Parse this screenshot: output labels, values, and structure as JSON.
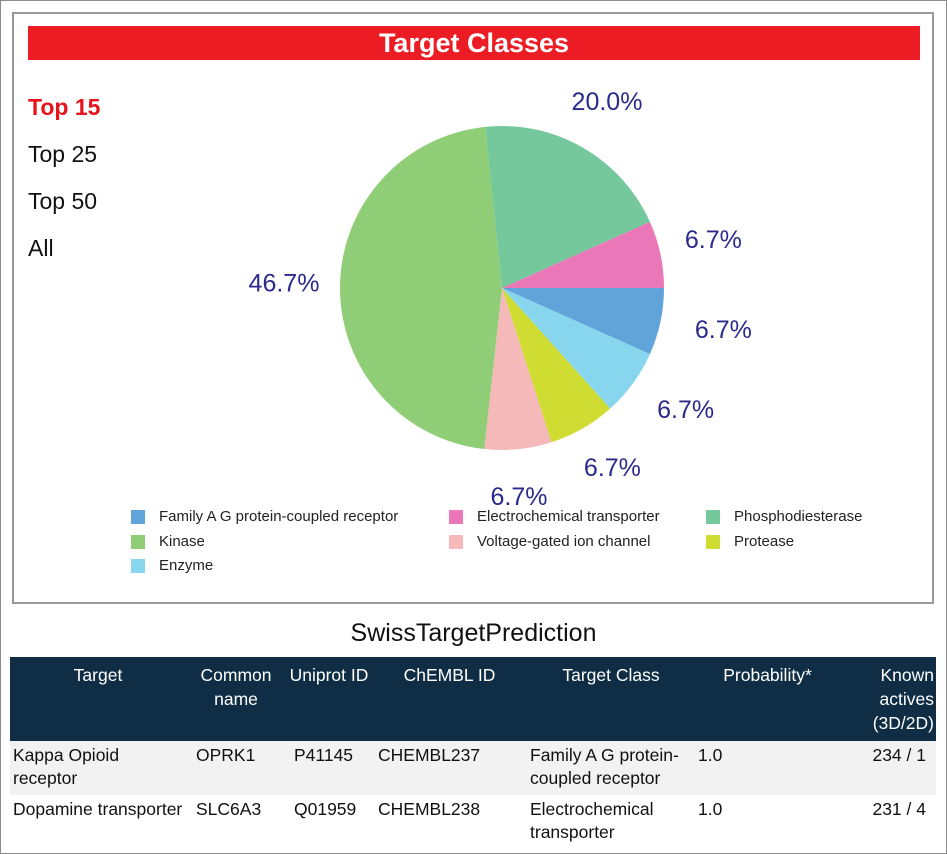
{
  "chart_data": {
    "type": "pie",
    "title": "Target Classes",
    "slices": [
      {
        "label": "Family A G protein-coupled receptor",
        "value": 6.7,
        "display": "6.7%",
        "color": "#61a4da"
      },
      {
        "label": "Enzyme",
        "value": 6.7,
        "display": "6.7%",
        "color": "#87d6ee"
      },
      {
        "label": "Protease",
        "value": 6.7,
        "display": "6.7%",
        "color": "#cfdc32"
      },
      {
        "label": "Voltage-gated ion channel",
        "value": 6.7,
        "display": "6.7%",
        "color": "#f6b9b9"
      },
      {
        "label": "Kinase",
        "value": 46.7,
        "display": "46.7%",
        "color": "#8fcd76"
      },
      {
        "label": "Phosphodiesterase",
        "value": 20.0,
        "display": "20.0%",
        "color": "#74c89c"
      },
      {
        "label": "Electrochemical transporter",
        "value": 6.7,
        "display": "6.7%",
        "color": "#ea78b8"
      }
    ],
    "legend_order": [
      "Family A G protein-coupled receptor",
      "Electrochemical transporter",
      "Phosphodiesterase",
      "Kinase",
      "Voltage-gated ion channel",
      "Protease",
      "Enzyme"
    ],
    "legend_placement": "bottom"
  },
  "header": {
    "title": "Target Classes"
  },
  "top_links": [
    {
      "label": "Top 15",
      "active": true
    },
    {
      "label": "Top 25",
      "active": false
    },
    {
      "label": "Top 50",
      "active": false
    },
    {
      "label": "All",
      "active": false
    }
  ],
  "table": {
    "title": "SwissTargetPrediction",
    "columns": [
      "Target",
      "Common name",
      "Uniprot ID",
      "ChEMBL ID",
      "Target Class",
      "Probability*",
      "Known actives (3D/2D)"
    ],
    "rows": [
      [
        "Kappa Opioid receptor",
        "OPRK1",
        "P41145",
        "CHEMBL237",
        "Family A G protein-coupled receptor",
        "1.0",
        "234 /  1"
      ],
      [
        "Dopamine transporter",
        "SLC6A3",
        "Q01959",
        "CHEMBL238",
        "Electrochemical transporter",
        "1.0",
        "231 /  4"
      ]
    ]
  }
}
